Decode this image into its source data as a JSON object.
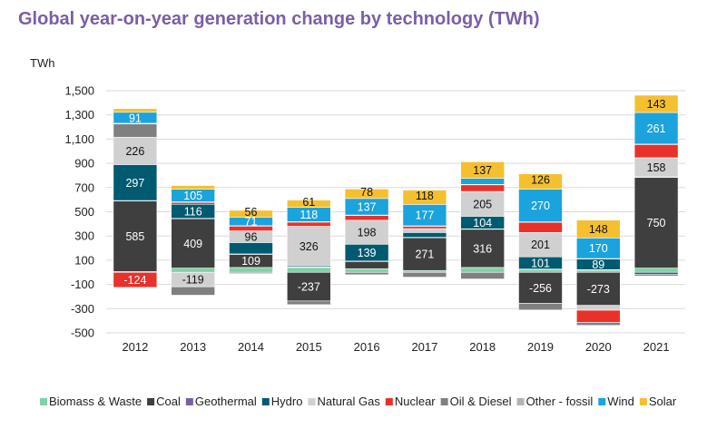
{
  "chart_data": {
    "type": "bar",
    "stacked": true,
    "title": "Global year-on-year generation change by technology (TWh)",
    "ylabel": "TWh",
    "xlabel": "",
    "ylim": [
      -500,
      1500
    ],
    "yticks": [
      -500,
      -300,
      -100,
      100,
      300,
      500,
      700,
      900,
      1100,
      1300,
      1500
    ],
    "ytick_labels": [
      "-500",
      "-300",
      "-100",
      "100",
      "300",
      "500",
      "700",
      "900",
      "1,100",
      "1,300",
      "1,500"
    ],
    "grid": true,
    "legend_position": "bottom",
    "categories": [
      "2012",
      "2013",
      "2014",
      "2015",
      "2016",
      "2017",
      "2018",
      "2019",
      "2020",
      "2021"
    ],
    "series": [
      {
        "name": "Biomass & Waste",
        "color": "#7FD3A6",
        "values": [
          6,
          35,
          40,
          40,
          30,
          15,
          40,
          25,
          20,
          35
        ]
      },
      {
        "name": "Coal",
        "color": "#3F3F3F",
        "values": [
          585,
          409,
          109,
          -237,
          60,
          271,
          316,
          -256,
          -273,
          750
        ]
      },
      {
        "name": "Geothermal",
        "color": "#7B5EA7",
        "values": [
          2,
          2,
          3,
          4,
          3,
          3,
          3,
          2,
          2,
          3
        ]
      },
      {
        "name": "Hydro",
        "color": "#005A70",
        "values": [
          297,
          116,
          94,
          10,
          139,
          40,
          104,
          101,
          89,
          -15
        ]
      },
      {
        "name": "Natural Gas",
        "color": "#D0D0D0",
        "values": [
          226,
          -119,
          96,
          326,
          198,
          32,
          205,
          201,
          -40,
          158
        ]
      },
      {
        "name": "Nuclear",
        "color": "#E8312A",
        "values": [
          -124,
          15,
          40,
          35,
          40,
          20,
          55,
          85,
          -100,
          110
        ]
      },
      {
        "name": "Oil & Diesel",
        "color": "#808080",
        "values": [
          110,
          -70,
          -10,
          -30,
          -20,
          -40,
          -55,
          -55,
          -25,
          -15
        ]
      },
      {
        "name": "Other - fossil",
        "color": "#B3B3B3",
        "values": [
          5,
          5,
          3,
          3,
          3,
          3,
          3,
          3,
          3,
          3
        ]
      },
      {
        "name": "Wind",
        "color": "#1BA3DD",
        "values": [
          91,
          105,
          71,
          118,
          137,
          177,
          50,
          270,
          170,
          261
        ]
      },
      {
        "name": "Solar",
        "color": "#F5C02F",
        "values": [
          30,
          30,
          56,
          61,
          78,
          118,
          137,
          126,
          148,
          143
        ]
      }
    ],
    "data_labels": [
      {
        "category": "2012",
        "series": "Nuclear",
        "text": "-124"
      },
      {
        "category": "2012",
        "series": "Coal",
        "text": "585"
      },
      {
        "category": "2012",
        "series": "Hydro",
        "text": "297"
      },
      {
        "category": "2012",
        "series": "Natural Gas",
        "text": "226"
      },
      {
        "category": "2012",
        "series": "Wind",
        "text": "91"
      },
      {
        "category": "2013",
        "series": "Natural Gas",
        "text": "-119"
      },
      {
        "category": "2013",
        "series": "Coal",
        "text": "409"
      },
      {
        "category": "2013",
        "series": "Hydro",
        "text": "116"
      },
      {
        "category": "2013",
        "series": "Wind",
        "text": "105"
      },
      {
        "category": "2014",
        "series": "Coal",
        "text": "109"
      },
      {
        "category": "2014",
        "series": "Natural Gas",
        "text": "96"
      },
      {
        "category": "2014",
        "series": "Wind",
        "text": "71"
      },
      {
        "category": "2014",
        "series": "Solar",
        "text": "56"
      },
      {
        "category": "2015",
        "series": "Coal",
        "text": "-237"
      },
      {
        "category": "2015",
        "series": "Natural Gas",
        "text": "326"
      },
      {
        "category": "2015",
        "series": "Wind",
        "text": "118"
      },
      {
        "category": "2015",
        "series": "Solar",
        "text": "61"
      },
      {
        "category": "2016",
        "series": "Hydro",
        "text": "139"
      },
      {
        "category": "2016",
        "series": "Natural Gas",
        "text": "198"
      },
      {
        "category": "2016",
        "series": "Wind",
        "text": "137"
      },
      {
        "category": "2016",
        "series": "Solar",
        "text": "78"
      },
      {
        "category": "2017",
        "series": "Coal",
        "text": "271"
      },
      {
        "category": "2017",
        "series": "Wind",
        "text": "177"
      },
      {
        "category": "2017",
        "series": "Solar",
        "text": "118"
      },
      {
        "category": "2018",
        "series": "Coal",
        "text": "316"
      },
      {
        "category": "2018",
        "series": "Hydro",
        "text": "104"
      },
      {
        "category": "2018",
        "series": "Natural Gas",
        "text": "205"
      },
      {
        "category": "2018",
        "series": "Solar",
        "text": "137"
      },
      {
        "category": "2019",
        "series": "Coal",
        "text": "-256"
      },
      {
        "category": "2019",
        "series": "Hydro",
        "text": "101"
      },
      {
        "category": "2019",
        "series": "Natural Gas",
        "text": "201"
      },
      {
        "category": "2019",
        "series": "Wind",
        "text": "270"
      },
      {
        "category": "2019",
        "series": "Solar",
        "text": "126"
      },
      {
        "category": "2020",
        "series": "Coal",
        "text": "-273"
      },
      {
        "category": "2020",
        "series": "Hydro",
        "text": "89"
      },
      {
        "category": "2020",
        "series": "Wind",
        "text": "170"
      },
      {
        "category": "2020",
        "series": "Solar",
        "text": "148"
      },
      {
        "category": "2021",
        "series": "Coal",
        "text": "750"
      },
      {
        "category": "2021",
        "series": "Natural Gas",
        "text": "158"
      },
      {
        "category": "2021",
        "series": "Wind",
        "text": "261"
      },
      {
        "category": "2021",
        "series": "Solar",
        "text": "143"
      }
    ]
  }
}
